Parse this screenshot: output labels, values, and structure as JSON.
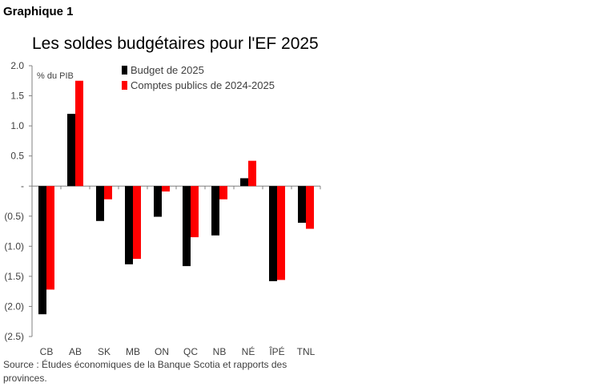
{
  "figure_label": "Graphique 1",
  "source": "Source : Études économiques de la Banque Scotia et rapports des provinces.",
  "colors": {
    "budget": "#000000",
    "comptes": "#ff0000",
    "axis": "#808080"
  },
  "chart_data": {
    "type": "bar",
    "title": "Les soldes budgétaires pour l'EF 2025",
    "ylabel": "% du PIB",
    "xlabel": "",
    "ylim": [
      -2.5,
      2.0
    ],
    "yticks": [
      2.0,
      1.5,
      1.0,
      0.5,
      0,
      -0.5,
      -1.0,
      -1.5,
      -2.0,
      -2.5
    ],
    "ytick_labels": [
      "2.0",
      "1.5",
      "1.0",
      "0.5",
      "-",
      "(0.5)",
      "(1.0)",
      "(1.5)",
      "(2.0)",
      "(2.5)"
    ],
    "legend_position": "top",
    "categories": [
      "CB",
      "AB",
      "SK",
      "MB",
      "ON",
      "QC",
      "NB",
      "NÉ",
      "ÎPÉ",
      "TNL"
    ],
    "series": [
      {
        "name": "Budget de 2025",
        "color": "#000000",
        "values": [
          -2.13,
          1.2,
          -0.58,
          -1.3,
          -0.51,
          -1.33,
          -0.82,
          0.13,
          -1.58,
          -0.61
        ]
      },
      {
        "name": "Comptes publics de 2024-2025",
        "color": "#ff0000",
        "values": [
          -1.72,
          1.75,
          -0.22,
          -1.21,
          -0.09,
          -0.85,
          -0.22,
          0.42,
          -1.56,
          -0.71
        ]
      }
    ]
  }
}
